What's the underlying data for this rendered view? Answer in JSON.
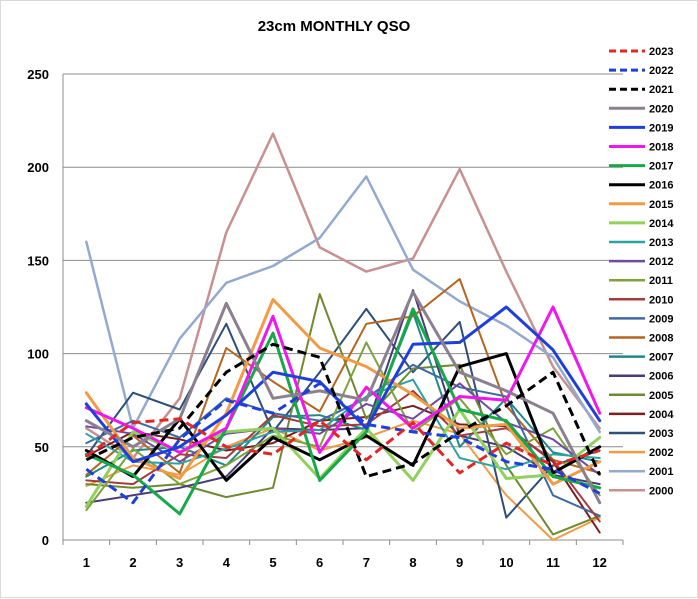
{
  "chart_data": {
    "type": "line",
    "title": "23cm MONTHLY QSO",
    "xlabel": "",
    "ylabel": "",
    "categories": [
      "1",
      "2",
      "3",
      "4",
      "5",
      "6",
      "7",
      "8",
      "9",
      "10",
      "11",
      "12"
    ],
    "ylim": [
      0,
      250
    ],
    "yticks": [
      "0",
      "50",
      "100",
      "150",
      "200",
      "250"
    ],
    "grid": "horizontal",
    "legend_position": "right",
    "series": [
      {
        "name": "2023",
        "color": "#e32626",
        "dashed": true,
        "width": 3,
        "values": [
          45,
          63,
          65,
          50,
          46,
          64,
          43,
          63,
          36,
          52,
          40,
          48
        ]
      },
      {
        "name": "2022",
        "color": "#1f3fdc",
        "dashed": true,
        "width": 3,
        "values": [
          38,
          20,
          54,
          75,
          68,
          84,
          62,
          58,
          55,
          42,
          38,
          25
        ]
      },
      {
        "name": "2021",
        "color": "#000000",
        "dashed": true,
        "width": 3,
        "values": [
          43,
          55,
          60,
          90,
          105,
          98,
          34,
          41,
          58,
          72,
          90,
          35
        ]
      },
      {
        "name": "2020",
        "color": "#8c7f8f",
        "dashed": false,
        "width": 3,
        "values": [
          64,
          50,
          65,
          127,
          76,
          80,
          75,
          133,
          90,
          80,
          68,
          20
        ]
      },
      {
        "name": "2019",
        "color": "#1f3fdc",
        "dashed": false,
        "width": 3,
        "values": [
          73,
          42,
          50,
          67,
          90,
          85,
          60,
          105,
          106,
          125,
          102,
          64
        ]
      },
      {
        "name": "2018",
        "color": "#f016f0",
        "dashed": false,
        "width": 3,
        "values": [
          71,
          60,
          47,
          60,
          120,
          47,
          82,
          60,
          77,
          75,
          125,
          68
        ]
      },
      {
        "name": "2017",
        "color": "#17a84a",
        "dashed": false,
        "width": 3,
        "values": [
          46,
          35,
          14,
          60,
          111,
          32,
          58,
          124,
          70,
          64,
          34,
          28
        ]
      },
      {
        "name": "2016",
        "color": "#000000",
        "dashed": false,
        "width": 3,
        "values": [
          48,
          34,
          65,
          32,
          55,
          43,
          56,
          40,
          93,
          100,
          36,
          50
        ]
      },
      {
        "name": "2015",
        "color": "#f39a45",
        "dashed": false,
        "width": 3,
        "values": [
          79,
          44,
          33,
          68,
          129,
          103,
          93,
          78,
          60,
          62,
          30,
          42
        ]
      },
      {
        "name": "2014",
        "color": "#8fd15b",
        "dashed": false,
        "width": 3,
        "values": [
          18,
          58,
          47,
          58,
          60,
          33,
          60,
          32,
          70,
          33,
          35,
          55
        ]
      },
      {
        "name": "2013",
        "color": "#2aa3a3",
        "dashed": false,
        "width": 2,
        "values": [
          57,
          42,
          41,
          49,
          58,
          59,
          77,
          86,
          44,
          38,
          46,
          44
        ]
      },
      {
        "name": "2012",
        "color": "#6c4ca0",
        "dashed": false,
        "width": 2,
        "values": [
          61,
          57,
          42,
          57,
          60,
          57,
          73,
          65,
          84,
          63,
          54,
          35
        ]
      },
      {
        "name": "2011",
        "color": "#7fa23b",
        "dashed": false,
        "width": 2,
        "values": [
          16,
          49,
          30,
          40,
          56,
          50,
          106,
          58,
          76,
          46,
          60,
          24
        ]
      },
      {
        "name": "2010",
        "color": "#a43c3c",
        "dashed": false,
        "width": 2,
        "values": [
          32,
          30,
          46,
          44,
          67,
          61,
          62,
          80,
          56,
          60,
          43,
          10
        ]
      },
      {
        "name": "2009",
        "color": "#3e6aa3",
        "dashed": false,
        "width": 2,
        "values": [
          52,
          64,
          55,
          76,
          68,
          64,
          76,
          94,
          82,
          77,
          24,
          13
        ]
      },
      {
        "name": "2008",
        "color": "#b5651d",
        "dashed": false,
        "width": 2,
        "values": [
          35,
          56,
          36,
          103,
          85,
          69,
          116,
          120,
          140,
          72,
          43,
          36
        ]
      },
      {
        "name": "2007",
        "color": "#1e8a8a",
        "dashed": false,
        "width": 2,
        "values": [
          34,
          48,
          50,
          40,
          66,
          67,
          59,
          122,
          50,
          76,
          47,
          42
        ]
      },
      {
        "name": "2006",
        "color": "#4a3b78",
        "dashed": false,
        "width": 2,
        "values": [
          20,
          24,
          28,
          34,
          60,
          59,
          60,
          134,
          56,
          50,
          35,
          30
        ]
      },
      {
        "name": "2005",
        "color": "#6f8a2e",
        "dashed": false,
        "width": 2,
        "values": [
          30,
          28,
          30,
          23,
          28,
          132,
          65,
          92,
          94,
          40,
          3,
          13
        ]
      },
      {
        "name": "2004",
        "color": "#7a1f1f",
        "dashed": false,
        "width": 2,
        "values": [
          45,
          58,
          54,
          48,
          52,
          64,
          66,
          72,
          62,
          61,
          42,
          4
        ]
      },
      {
        "name": "2003",
        "color": "#2d4f7a",
        "dashed": false,
        "width": 2,
        "values": [
          45,
          79,
          70,
          116,
          58,
          90,
          124,
          90,
          117,
          12,
          40,
          48
        ]
      },
      {
        "name": "2002",
        "color": "#f39a45",
        "dashed": false,
        "width": 2,
        "values": [
          29,
          40,
          35,
          50,
          60,
          48,
          55,
          64,
          57,
          24,
          0,
          12
        ]
      },
      {
        "name": "2001",
        "color": "#93aacf",
        "dashed": false,
        "width": 2.5,
        "values": [
          160,
          60,
          108,
          138,
          147,
          162,
          195,
          145,
          128,
          115,
          98,
          58
        ]
      },
      {
        "name": "2000",
        "color": "#c89090",
        "dashed": false,
        "width": 2.5,
        "values": [
          60,
          44,
          76,
          165,
          218,
          157,
          144,
          151,
          199,
          144,
          93,
          60
        ]
      }
    ]
  }
}
